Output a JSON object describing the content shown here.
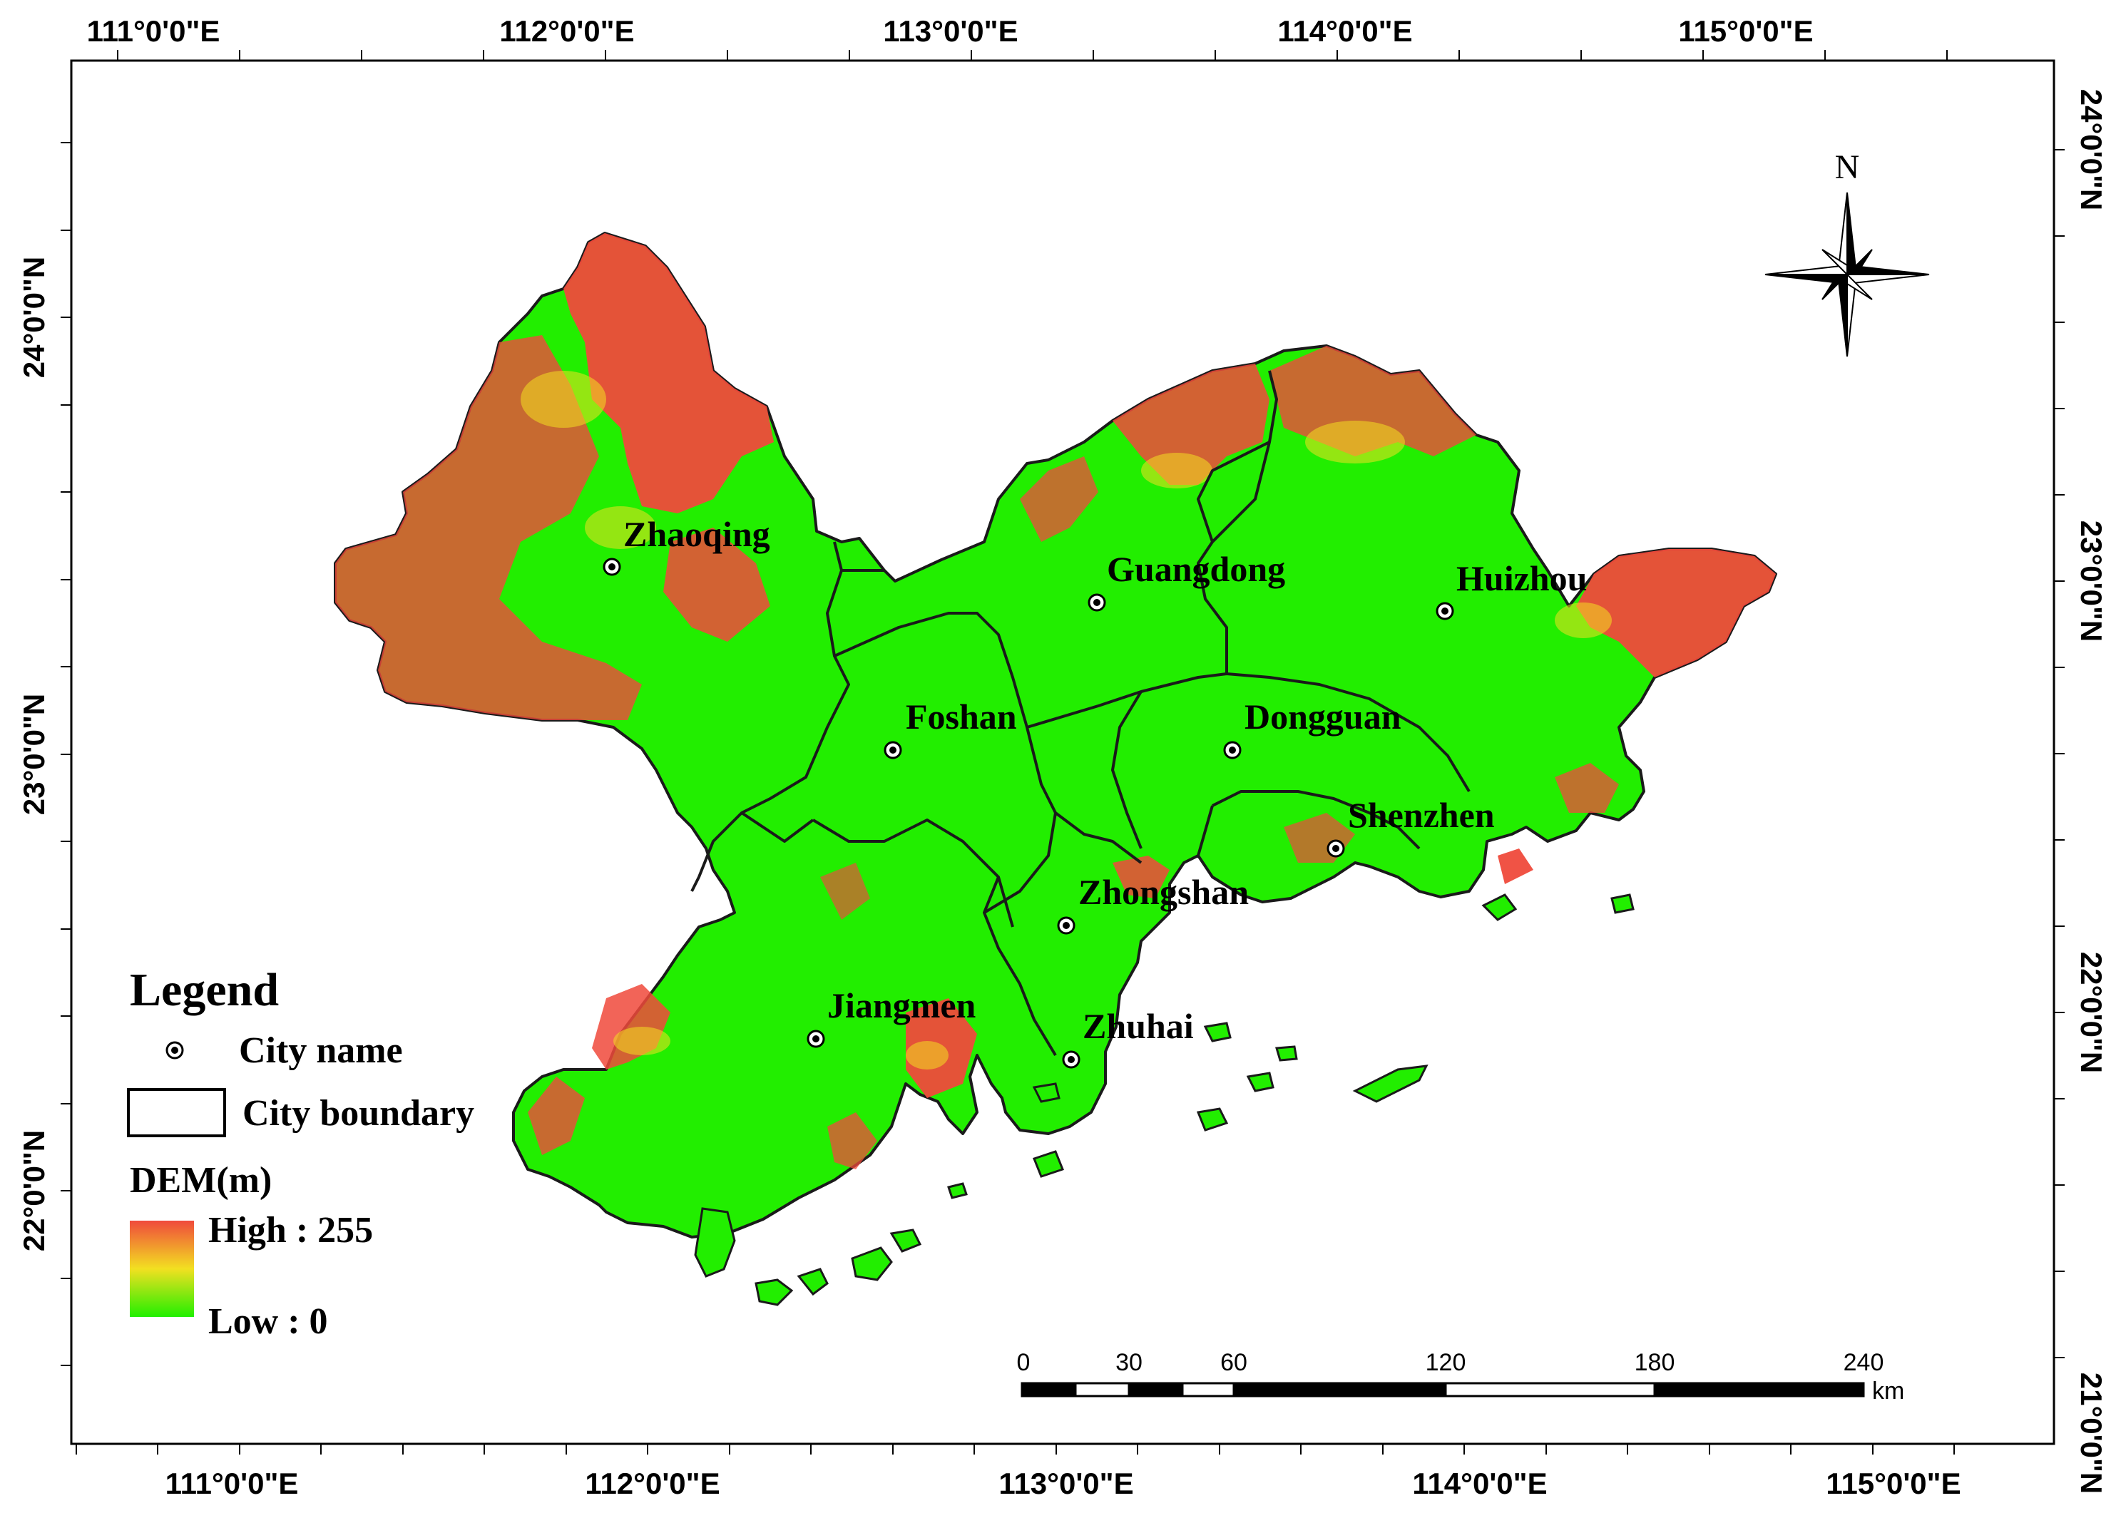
{
  "map": {
    "top_lon_labels": [
      "111°0'0\"E",
      "112°0'0\"E",
      "113°0'0\"E",
      "114°0'0\"E",
      "115°0'0\"E"
    ],
    "bottom_lon_labels": [
      "111°0'0\"E",
      "112°0'0\"E",
      "113°0'0\"E",
      "114°0'0\"E",
      "115°0'0\"E"
    ],
    "left_lat_labels": [
      "24°0'0\"N",
      "23°0'0\"N",
      "22°0'0\"N"
    ],
    "right_lat_labels": [
      "24°0'0\"N",
      "23°0'0\"N",
      "22°0'0\"N",
      "21°0'0\"N"
    ]
  },
  "cities": [
    {
      "name": "Zhaoqing"
    },
    {
      "name": "Guangdong"
    },
    {
      "name": "Huizhou"
    },
    {
      "name": "Foshan"
    },
    {
      "name": "Dongguan"
    },
    {
      "name": "Shenzhen"
    },
    {
      "name": "Zhongshan"
    },
    {
      "name": "Jiangmen"
    },
    {
      "name": "Zhuhai"
    }
  ],
  "north_arrow": {
    "label": "N"
  },
  "legend": {
    "title": "Legend",
    "city_name": "City name",
    "city_boundary": "City boundary",
    "dem_title": "DEM(m)",
    "high": "High : 255",
    "low": "Low : 0"
  },
  "scale_bar": {
    "ticks": [
      "0",
      "30",
      "60",
      "120",
      "180",
      "240"
    ],
    "unit": "km"
  },
  "colors": {
    "dem_high": "#f04a3c",
    "dem_mid": "#f2e021",
    "dem_low": "#21ef00",
    "boundary": "#1a1a1a"
  }
}
